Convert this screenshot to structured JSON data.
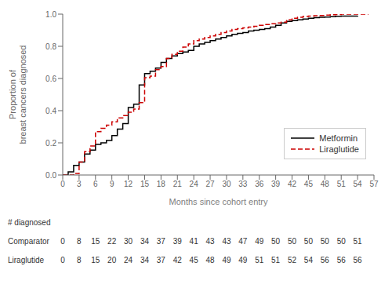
{
  "chart_data": {
    "type": "line",
    "xlabel": "Months since cohort entry",
    "ylabel": "Proportion of\nbreast cancers diagnosed",
    "xlim": [
      0,
      57
    ],
    "xticks": [
      0,
      3,
      6,
      9,
      12,
      15,
      18,
      21,
      24,
      27,
      30,
      33,
      36,
      39,
      42,
      45,
      48,
      51,
      54,
      57
    ],
    "ylim": [
      0.0,
      1.0
    ],
    "yticks": [
      {
        "value": 0,
        "label": "0.0"
      },
      0.2,
      0.4,
      0.6,
      0.8,
      {
        "value": 1,
        "label": "1.0"
      }
    ],
    "grid": false,
    "legend": "lower right",
    "series": [
      {
        "name": "Metformin",
        "color": "#000000",
        "line_style": "solid",
        "x": [
          0,
          1,
          2,
          3,
          4,
          5,
          6,
          7,
          8,
          9,
          10,
          11,
          12,
          13,
          14,
          15,
          16,
          17,
          18,
          19,
          20,
          21,
          22,
          23,
          24,
          25,
          26,
          27,
          28,
          29,
          30,
          31,
          32,
          33,
          34,
          35,
          36,
          37,
          38,
          39,
          40,
          41,
          42,
          43,
          44,
          45,
          46,
          47,
          48,
          49,
          50,
          51,
          54
        ],
        "values": [
          0,
          0.02,
          0.06,
          0.08,
          0.13,
          0.155,
          0.19,
          0.2,
          0.215,
          0.245,
          0.285,
          0.32,
          0.42,
          0.44,
          0.56,
          0.63,
          0.645,
          0.665,
          0.7,
          0.725,
          0.74,
          0.755,
          0.765,
          0.775,
          0.8,
          0.815,
          0.825,
          0.835,
          0.845,
          0.855,
          0.865,
          0.875,
          0.88,
          0.885,
          0.895,
          0.9,
          0.905,
          0.91,
          0.92,
          0.93,
          0.945,
          0.955,
          0.96,
          0.965,
          0.97,
          0.975,
          0.978,
          0.98,
          0.982,
          0.984,
          0.986,
          0.988,
          0.99
        ]
      },
      {
        "name": "Liraglutide",
        "color": "#cc0000",
        "line_style": "dashed",
        "x": [
          0,
          1,
          2,
          3,
          4,
          5,
          6,
          7,
          8,
          9,
          10,
          11,
          12,
          13,
          14,
          15,
          16,
          17,
          18,
          19,
          20,
          21,
          22,
          23,
          24,
          25,
          26,
          27,
          28,
          29,
          30,
          31,
          32,
          33,
          34,
          35,
          36,
          37,
          38,
          39,
          40,
          41,
          42,
          43,
          44,
          45,
          46,
          47,
          48,
          49,
          50,
          51,
          52,
          53,
          54,
          55,
          56
        ],
        "values": [
          0,
          0,
          0.01,
          0.08,
          0.145,
          0.18,
          0.27,
          0.29,
          0.31,
          0.33,
          0.355,
          0.37,
          0.39,
          0.41,
          0.45,
          0.605,
          0.615,
          0.655,
          0.675,
          0.725,
          0.75,
          0.77,
          0.795,
          0.815,
          0.835,
          0.845,
          0.855,
          0.865,
          0.875,
          0.885,
          0.895,
          0.905,
          0.91,
          0.915,
          0.92,
          0.925,
          0.93,
          0.935,
          0.94,
          0.945,
          0.95,
          0.965,
          0.975,
          0.98,
          0.985,
          0.988,
          0.99,
          0.992,
          0.994,
          0.996,
          0.998,
          1.0,
          1.0,
          1.0,
          1.0,
          1.0,
          1.0
        ]
      }
    ],
    "table": {
      "title": "# diagnosed",
      "x": [
        0,
        3,
        6,
        9,
        12,
        15,
        18,
        21,
        24,
        27,
        30,
        33,
        36,
        39,
        42,
        45,
        48,
        51,
        54
      ],
      "rows": [
        {
          "name": "Comparator",
          "values": [
            0,
            8,
            15,
            22,
            30,
            34,
            37,
            39,
            41,
            43,
            43,
            47,
            49,
            50,
            50,
            50,
            50,
            50,
            51
          ]
        },
        {
          "name": "Liraglutide",
          "values": [
            0,
            8,
            15,
            20,
            24,
            34,
            37,
            42,
            45,
            48,
            49,
            49,
            51,
            51,
            52,
            54,
            56,
            56,
            56
          ]
        }
      ]
    }
  }
}
